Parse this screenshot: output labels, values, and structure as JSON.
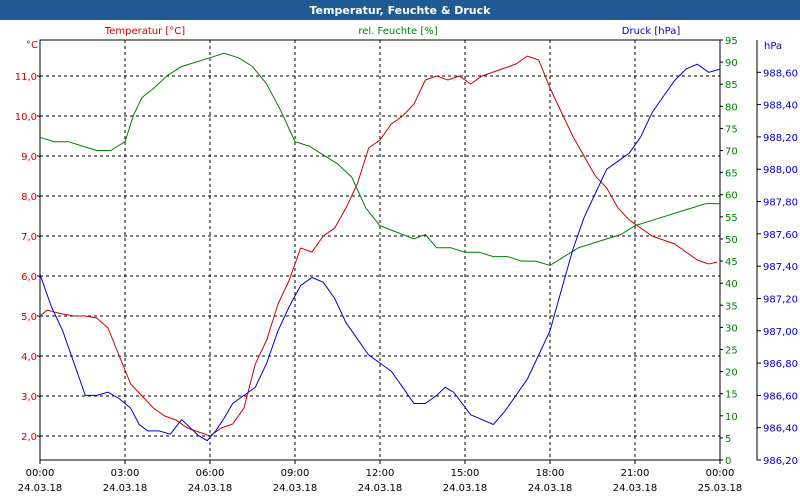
{
  "window": {
    "title": "Temperatur, Feuchte & Druck"
  },
  "chart_data": {
    "type": "line",
    "title": "Temperatur, Feuchte & Druck",
    "grid": true,
    "colors": {
      "temperature": "#cc0000",
      "humidity": "#008000",
      "pressure": "#0000cc",
      "grid": "#000000"
    },
    "x_ticks": [
      {
        "time": "00:00",
        "date": "24.03.18"
      },
      {
        "time": "03:00",
        "date": "24.03.18"
      },
      {
        "time": "06:00",
        "date": "24.03.18"
      },
      {
        "time": "09:00",
        "date": "24.03.18"
      },
      {
        "time": "12:00",
        "date": "24.03.18"
      },
      {
        "time": "15:00",
        "date": "24.03.18"
      },
      {
        "time": "18:00",
        "date": "24.03.18"
      },
      {
        "time": "21:00",
        "date": "24.03.18"
      },
      {
        "time": "00:00",
        "date": "25.03.18"
      }
    ],
    "xlim": [
      "24.03.18 00:00",
      "25.03.18 00:00"
    ],
    "axes": {
      "temperature": {
        "unit": "°C",
        "label": "Temperatur [°C]",
        "ylim": [
          1.4,
          11.9
        ],
        "ticks": [
          "2,0",
          "3,0",
          "4,0",
          "5,0",
          "6,0",
          "7,0",
          "8,0",
          "9,0",
          "10,0",
          "11,0"
        ],
        "tick_values": [
          2,
          3,
          4,
          5,
          6,
          7,
          8,
          9,
          10,
          11
        ]
      },
      "humidity": {
        "unit": "%",
        "label": "rel. Feuchte [%]",
        "ylim": [
          0,
          95
        ],
        "ticks": [
          "0",
          "5",
          "10",
          "15",
          "20",
          "25",
          "30",
          "35",
          "40",
          "45",
          "50",
          "55",
          "60",
          "65",
          "70",
          "75",
          "80",
          "85",
          "90",
          "95"
        ]
      },
      "pressure": {
        "unit": "hPa",
        "label": "Druck [hPa]",
        "ylim": [
          986.2,
          988.8
        ],
        "ticks": [
          "986,20",
          "986,40",
          "986,60",
          "986,80",
          "987,00",
          "987,20",
          "987,40",
          "987,60",
          "987,80",
          "988,00",
          "988,20",
          "988,40",
          "988,60"
        ],
        "tick_values": [
          986.2,
          986.4,
          986.6,
          986.8,
          987.0,
          987.2,
          987.4,
          987.6,
          987.8,
          988.0,
          988.2,
          988.4,
          988.6
        ]
      }
    },
    "series": [
      {
        "name": "Temperatur [°C]",
        "key": "temperature",
        "color": "#cc0000",
        "x_hours": [
          0,
          0.25,
          0.5,
          0.8,
          1.2,
          1.6,
          2.0,
          2.4,
          2.8,
          3.2,
          3.6,
          4.0,
          4.4,
          4.8,
          5.2,
          5.6,
          6.0,
          6.4,
          6.8,
          7.2,
          7.6,
          8.0,
          8.4,
          8.8,
          9.2,
          9.6,
          10.0,
          10.4,
          10.8,
          11.2,
          11.6,
          12.0,
          12.4,
          12.8,
          13.2,
          13.6,
          14.0,
          14.4,
          14.8,
          15.2,
          15.6,
          16.0,
          16.4,
          16.8,
          17.2,
          17.6,
          18.0,
          18.4,
          18.8,
          19.2,
          19.6,
          20.0,
          20.4,
          20.8,
          21.2,
          21.6,
          22.0,
          22.4,
          22.8,
          23.2,
          23.6,
          23.9
        ],
        "values": [
          5.0,
          5.15,
          5.1,
          5.05,
          5.0,
          5.0,
          4.95,
          4.7,
          4.0,
          3.3,
          3.0,
          2.7,
          2.5,
          2.4,
          2.2,
          2.1,
          2.0,
          2.2,
          2.3,
          2.7,
          3.8,
          4.4,
          5.3,
          5.9,
          6.7,
          6.6,
          7.0,
          7.2,
          7.7,
          8.3,
          9.2,
          9.4,
          9.8,
          10.0,
          10.3,
          10.9,
          11.0,
          10.9,
          11.0,
          10.8,
          11.0,
          11.1,
          11.2,
          11.3,
          11.5,
          11.4,
          10.7,
          10.1,
          9.5,
          9.0,
          8.5,
          8.2,
          7.7,
          7.4,
          7.2,
          7.0,
          6.9,
          6.8,
          6.6,
          6.4,
          6.3,
          6.35
        ]
      },
      {
        "name": "rel. Feuchte [%]",
        "key": "humidity",
        "color": "#008000",
        "x_hours": [
          0,
          0.5,
          1.0,
          1.5,
          2.0,
          2.5,
          3.0,
          3.3,
          3.6,
          4.0,
          4.5,
          5.0,
          5.5,
          6.0,
          6.5,
          7.0,
          7.5,
          8.0,
          8.5,
          9.0,
          9.5,
          10.0,
          10.5,
          11.0,
          11.5,
          12.0,
          12.4,
          12.8,
          13.2,
          13.6,
          14.0,
          14.5,
          15.0,
          15.5,
          16.0,
          16.5,
          17.0,
          17.5,
          18.0,
          18.5,
          19.0,
          19.5,
          20.0,
          20.5,
          21.0,
          21.5,
          22.0,
          22.5,
          23.0,
          23.5,
          24.0
        ],
        "values": [
          73,
          72,
          72,
          71,
          70,
          70,
          72,
          78,
          82,
          84,
          87,
          89,
          90,
          91,
          92,
          91,
          89,
          85,
          79,
          72,
          71,
          69,
          67,
          64,
          57,
          53,
          52,
          51,
          50,
          51,
          48,
          48,
          47,
          47,
          46,
          46,
          45,
          45,
          44,
          46,
          48,
          49,
          50,
          51,
          53,
          54,
          55,
          56,
          57,
          58,
          58
        ]
      },
      {
        "name": "Druck [hPa]",
        "key": "pressure",
        "color": "#0000cc",
        "x_hours": [
          0,
          0.4,
          0.8,
          1.2,
          1.6,
          2.0,
          2.4,
          2.8,
          3.2,
          3.5,
          3.8,
          4.2,
          4.6,
          5.0,
          5.3,
          5.6,
          5.9,
          6.2,
          6.5,
          6.8,
          7.2,
          7.6,
          8.0,
          8.4,
          8.8,
          9.2,
          9.6,
          10.0,
          10.4,
          10.8,
          11.2,
          11.6,
          12.0,
          12.4,
          12.8,
          13.2,
          13.6,
          14.0,
          14.3,
          14.6,
          14.9,
          15.2,
          15.6,
          16.0,
          16.4,
          16.8,
          17.2,
          17.6,
          18.0,
          18.4,
          18.8,
          19.2,
          19.6,
          20.0,
          20.4,
          20.8,
          21.2,
          21.6,
          22.0,
          22.4,
          22.8,
          23.2,
          23.6,
          24.0
        ],
        "values": [
          987.35,
          987.15,
          987.0,
          986.8,
          986.6,
          986.6,
          986.62,
          986.58,
          986.52,
          986.42,
          986.38,
          986.38,
          986.36,
          986.45,
          986.4,
          986.35,
          986.32,
          986.38,
          986.46,
          986.55,
          986.6,
          986.65,
          986.8,
          987.0,
          987.15,
          987.28,
          987.33,
          987.3,
          987.2,
          987.05,
          986.95,
          986.85,
          986.8,
          986.75,
          986.65,
          986.55,
          986.55,
          986.6,
          986.65,
          986.62,
          986.55,
          986.48,
          986.45,
          986.42,
          986.5,
          986.6,
          986.7,
          986.85,
          987.0,
          987.25,
          987.5,
          987.7,
          987.85,
          988.0,
          988.05,
          988.1,
          988.2,
          988.35,
          988.45,
          988.55,
          988.62,
          988.65,
          988.6,
          988.62
        ]
      }
    ]
  }
}
